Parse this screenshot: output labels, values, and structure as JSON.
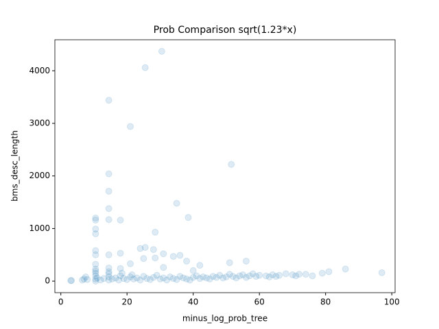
{
  "chart_data": {
    "type": "scatter",
    "title": "Prob Comparison sqrt(1.23*x)",
    "x_label": "minus_log_prob_tree",
    "y_label": "bms_desc_length",
    "color": "#1f77b4",
    "x": [
      30.5,
      25.5,
      14.5,
      21,
      51.5,
      14.5,
      14.5,
      35,
      14.5,
      38.5,
      10.5,
      10.5,
      14.5,
      18,
      10.5,
      28.5,
      10.5,
      24,
      25.5,
      28,
      31,
      36,
      34,
      10.5,
      10.5,
      14.5,
      18,
      25,
      28.5,
      38,
      56,
      51,
      42,
      21,
      31,
      10.5,
      86,
      97,
      81,
      79,
      72,
      76,
      14.5,
      10.5,
      18,
      40,
      3,
      3.2,
      6.5,
      7,
      7.5,
      8,
      10.5,
      10.5,
      10.5,
      10.5,
      10.5,
      11,
      12,
      13,
      14.5,
      14.5,
      14.5,
      14.5,
      15.5,
      16.5,
      17.5,
      18,
      18.5,
      19,
      20,
      21,
      21.5,
      22,
      23,
      24,
      25,
      26,
      27,
      28,
      29,
      30,
      31,
      32,
      33,
      34,
      35,
      36,
      37,
      38,
      39,
      40,
      41,
      42,
      43,
      44,
      45,
      46,
      47,
      48,
      49,
      50,
      51,
      52,
      53,
      54,
      55,
      56,
      57,
      58,
      59,
      60,
      62,
      63,
      64,
      65,
      66,
      68,
      70,
      71,
      74
    ],
    "values": [
      4370,
      4060,
      3440,
      2940,
      2220,
      2040,
      1710,
      1480,
      1380,
      1210,
      1200,
      1160,
      1170,
      1160,
      990,
      930,
      900,
      620,
      640,
      600,
      520,
      490,
      470,
      580,
      500,
      500,
      530,
      430,
      440,
      380,
      380,
      350,
      300,
      330,
      260,
      320,
      230,
      160,
      180,
      150,
      130,
      100,
      250,
      230,
      240,
      200,
      10,
      12,
      20,
      40,
      80,
      30,
      0,
      40,
      100,
      150,
      190,
      60,
      20,
      50,
      20,
      80,
      140,
      180,
      40,
      60,
      20,
      100,
      150,
      50,
      30,
      80,
      120,
      40,
      60,
      20,
      90,
      50,
      30,
      70,
      110,
      40,
      60,
      20,
      80,
      50,
      30,
      90,
      60,
      40,
      20,
      70,
      100,
      50,
      80,
      60,
      40,
      90,
      70,
      110,
      60,
      80,
      130,
      90,
      60,
      100,
      120,
      70,
      100,
      140,
      90,
      110,
      100,
      80,
      120,
      90,
      110,
      140,
      120,
      100,
      130
    ],
    "xlim": [
      -1.8,
      101
    ],
    "ylim": [
      -220,
      4590
    ],
    "xticks": [
      0,
      20,
      40,
      60,
      80,
      100
    ],
    "yticks": [
      0,
      1000,
      2000,
      3000,
      4000
    ]
  }
}
